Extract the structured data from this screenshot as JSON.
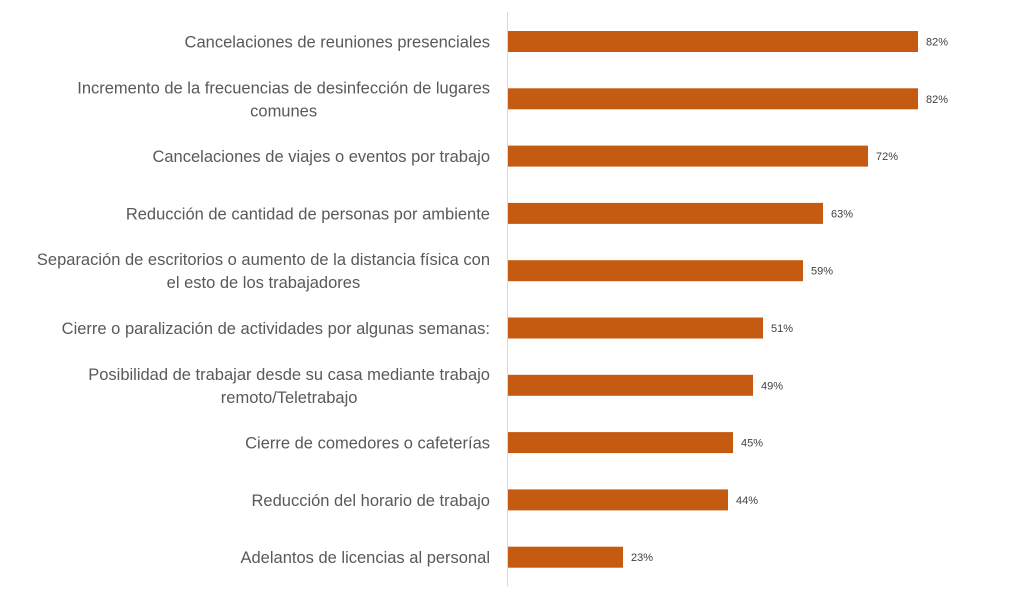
{
  "chart_data": {
    "type": "bar",
    "orientation": "horizontal",
    "title": "",
    "xlabel": "",
    "ylabel": "",
    "xlim": [
      0,
      100
    ],
    "grid": false,
    "bar_color": "#C55A11",
    "categories": [
      [
        "Cancelaciones de reuniones presenciales"
      ],
      [
        "Incremento de la frecuencias de desinfección de lugares",
        "comunes"
      ],
      [
        "Cancelaciones de viajes o eventos por trabajo"
      ],
      [
        "Reducción de cantidad de personas por ambiente"
      ],
      [
        "Separación de escritorios o aumento de la distancia física con",
        "el esto de los trabajadores"
      ],
      [
        "Cierre o paralización de actividades por algunas semanas:"
      ],
      [
        "Posibilidad de trabajar desde su casa mediante trabajo",
        "remoto/Teletrabajo"
      ],
      [
        "Cierre de comedores o cafeterías"
      ],
      [
        "Reducción del horario de trabajo"
      ],
      [
        "Adelantos de licencias al personal"
      ]
    ],
    "values": [
      82,
      82,
      72,
      63,
      59,
      51,
      49,
      45,
      44,
      23
    ],
    "value_labels": [
      "82%",
      "82%",
      "72%",
      "63%",
      "59%",
      "51%",
      "49%",
      "45%",
      "44%",
      "23%"
    ]
  }
}
